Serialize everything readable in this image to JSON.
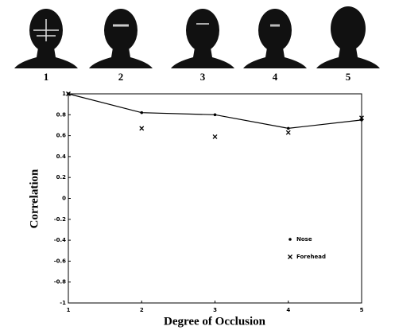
{
  "figure": {
    "panel_labels": [
      "1",
      "2",
      "3",
      "4",
      "5"
    ]
  },
  "chart_data": {
    "type": "line",
    "x_label": "Degree of Occlusion",
    "y_label": "Correlation",
    "x": [
      1,
      2,
      3,
      4,
      5
    ],
    "series": [
      {
        "name": "Nose",
        "color": "#000000",
        "marker": "dot",
        "line": true,
        "values": [
          1,
          0.82,
          0.8,
          0.67,
          0.75
        ]
      },
      {
        "name": "Forehead",
        "color": "#000000",
        "marker": "x",
        "line": false,
        "values": [
          1,
          0.67,
          0.59,
          0.63,
          0.77
        ]
      }
    ],
    "xlim": [
      1,
      5
    ],
    "xticks": [
      1,
      2,
      3,
      4,
      5
    ],
    "ylim": [
      -1,
      1
    ],
    "yticks": [
      1,
      0.8,
      0.6,
      0.4,
      0.2,
      0,
      -0.2,
      -0.4,
      -0.6,
      -0.8,
      -1
    ],
    "grid": false,
    "legend": "lower right"
  }
}
